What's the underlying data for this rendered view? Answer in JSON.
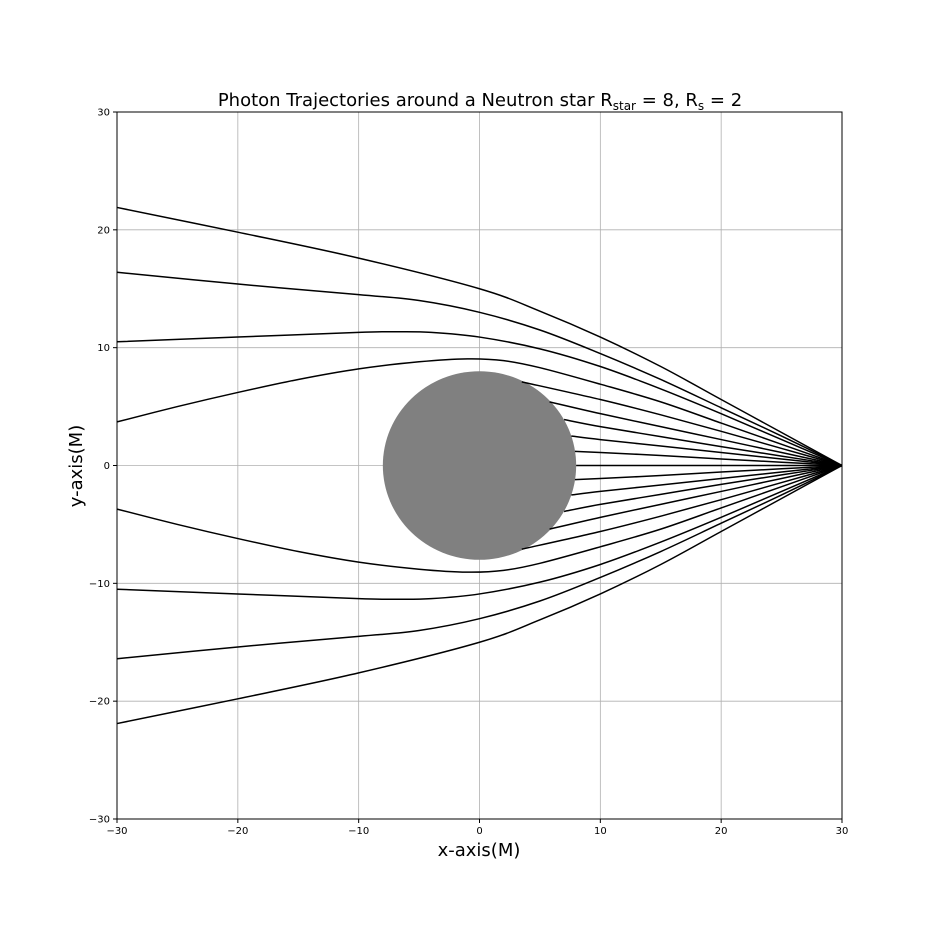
{
  "chart_data": {
    "type": "line",
    "title": {
      "prefix": "Photon Trajectories around a Neutron star ",
      "star_symbol": "R",
      "star_subscript": "star",
      "star_value": " = 8, ",
      "rs_symbol": "R",
      "rs_subscript": "s",
      "rs_value": " = 2"
    },
    "xlabel": "x-axis(M)",
    "ylabel": "y-axis(M)",
    "xlim": [
      -30,
      30
    ],
    "ylim": [
      -30,
      30
    ],
    "xticks": [
      "−30",
      "−20",
      "−10",
      "0",
      "10",
      "20",
      "30"
    ],
    "yticks": [
      "−30",
      "−20",
      "−10",
      "0",
      "10",
      "20",
      "30"
    ],
    "grid": true,
    "star": {
      "center": [
        0,
        0
      ],
      "radius": 8,
      "color": "#808080"
    },
    "observer": [
      30,
      0
    ],
    "line_color": "#000000",
    "series": [
      {
        "values": [
          [
            -30,
            21.9
          ],
          [
            -20,
            19.8
          ],
          [
            -10,
            17.6
          ],
          [
            0,
            15.0
          ],
          [
            5,
            13.1
          ],
          [
            10,
            10.9
          ],
          [
            15,
            8.4
          ],
          [
            20,
            5.6
          ],
          [
            25,
            2.8
          ],
          [
            30,
            0
          ]
        ]
      },
      {
        "values": [
          [
            -30,
            16.4
          ],
          [
            -20,
            15.4
          ],
          [
            -10,
            14.5
          ],
          [
            -5,
            14.0
          ],
          [
            0,
            13.0
          ],
          [
            5,
            11.5
          ],
          [
            10,
            9.5
          ],
          [
            15,
            7.3
          ],
          [
            20,
            4.9
          ],
          [
            25,
            2.5
          ],
          [
            30,
            0
          ]
        ]
      },
      {
        "values": [
          [
            -30,
            10.5
          ],
          [
            -20,
            10.9
          ],
          [
            -10,
            11.3
          ],
          [
            -7,
            11.35
          ],
          [
            -4,
            11.3
          ],
          [
            0,
            10.9
          ],
          [
            5,
            9.9
          ],
          [
            10,
            8.4
          ],
          [
            15,
            6.5
          ],
          [
            20,
            4.4
          ],
          [
            25,
            2.2
          ],
          [
            30,
            0
          ]
        ]
      },
      {
        "values": [
          [
            -30,
            3.7
          ],
          [
            -25,
            5.0
          ],
          [
            -20,
            6.2
          ],
          [
            -15,
            7.3
          ],
          [
            -10,
            8.2
          ],
          [
            -5,
            8.8
          ],
          [
            -1,
            9.05
          ],
          [
            2,
            8.9
          ],
          [
            5,
            8.3
          ],
          [
            10,
            6.9
          ],
          [
            15,
            5.4
          ],
          [
            20,
            3.6
          ],
          [
            25,
            1.8
          ],
          [
            30,
            0
          ]
        ]
      },
      {
        "values": [
          [
            3.5,
            7.1
          ],
          [
            10,
            5.6
          ],
          [
            15,
            4.3
          ],
          [
            20,
            2.9
          ],
          [
            25,
            1.45
          ],
          [
            30,
            0
          ]
        ]
      },
      {
        "values": [
          [
            5.8,
            5.4
          ],
          [
            10,
            4.4
          ],
          [
            15,
            3.3
          ],
          [
            20,
            2.2
          ],
          [
            25,
            1.1
          ],
          [
            30,
            0
          ]
        ]
      },
      {
        "values": [
          [
            7.0,
            3.9
          ],
          [
            10,
            3.3
          ],
          [
            15,
            2.45
          ],
          [
            20,
            1.6
          ],
          [
            25,
            0.8
          ],
          [
            30,
            0
          ]
        ]
      },
      {
        "values": [
          [
            7.6,
            2.5
          ],
          [
            10,
            2.2
          ],
          [
            15,
            1.65
          ],
          [
            20,
            1.1
          ],
          [
            25,
            0.55
          ],
          [
            30,
            0
          ]
        ]
      },
      {
        "values": [
          [
            7.9,
            1.2
          ],
          [
            10,
            1.1
          ],
          [
            15,
            0.85
          ],
          [
            20,
            0.55
          ],
          [
            25,
            0.28
          ],
          [
            30,
            0
          ]
        ]
      },
      {
        "values": [
          [
            8.0,
            0
          ],
          [
            30,
            0
          ]
        ]
      },
      {
        "values": [
          [
            7.9,
            -1.2
          ],
          [
            10,
            -1.1
          ],
          [
            15,
            -0.85
          ],
          [
            20,
            -0.55
          ],
          [
            25,
            -0.28
          ],
          [
            30,
            0
          ]
        ]
      },
      {
        "values": [
          [
            7.6,
            -2.5
          ],
          [
            10,
            -2.2
          ],
          [
            15,
            -1.65
          ],
          [
            20,
            -1.1
          ],
          [
            25,
            -0.55
          ],
          [
            30,
            0
          ]
        ]
      },
      {
        "values": [
          [
            7.0,
            -3.9
          ],
          [
            10,
            -3.3
          ],
          [
            15,
            -2.45
          ],
          [
            20,
            -1.6
          ],
          [
            25,
            -0.8
          ],
          [
            30,
            0
          ]
        ]
      },
      {
        "values": [
          [
            5.8,
            -5.4
          ],
          [
            10,
            -4.4
          ],
          [
            15,
            -3.3
          ],
          [
            20,
            -2.2
          ],
          [
            25,
            -1.1
          ],
          [
            30,
            0
          ]
        ]
      },
      {
        "values": [
          [
            3.5,
            -7.1
          ],
          [
            10,
            -5.6
          ],
          [
            15,
            -4.3
          ],
          [
            20,
            -2.9
          ],
          [
            25,
            -1.45
          ],
          [
            30,
            0
          ]
        ]
      },
      {
        "values": [
          [
            -30,
            -3.7
          ],
          [
            -25,
            -5.0
          ],
          [
            -20,
            -6.2
          ],
          [
            -15,
            -7.3
          ],
          [
            -10,
            -8.2
          ],
          [
            -5,
            -8.8
          ],
          [
            -1,
            -9.05
          ],
          [
            2,
            -8.9
          ],
          [
            5,
            -8.3
          ],
          [
            10,
            -6.9
          ],
          [
            15,
            -5.4
          ],
          [
            20,
            -3.6
          ],
          [
            25,
            -1.8
          ],
          [
            30,
            0
          ]
        ]
      },
      {
        "values": [
          [
            -30,
            -10.5
          ],
          [
            -20,
            -10.9
          ],
          [
            -10,
            -11.3
          ],
          [
            -7,
            -11.35
          ],
          [
            -4,
            -11.3
          ],
          [
            0,
            -10.9
          ],
          [
            5,
            -9.9
          ],
          [
            10,
            -8.4
          ],
          [
            15,
            -6.5
          ],
          [
            20,
            -4.4
          ],
          [
            25,
            -2.2
          ],
          [
            30,
            0
          ]
        ]
      },
      {
        "values": [
          [
            -30,
            -16.4
          ],
          [
            -20,
            -15.4
          ],
          [
            -10,
            -14.5
          ],
          [
            -5,
            -14.0
          ],
          [
            0,
            -13.0
          ],
          [
            5,
            -11.5
          ],
          [
            10,
            -9.5
          ],
          [
            15,
            -7.3
          ],
          [
            20,
            -4.9
          ],
          [
            25,
            -2.5
          ],
          [
            30,
            0
          ]
        ]
      },
      {
        "values": [
          [
            -30,
            -21.9
          ],
          [
            -20,
            -19.8
          ],
          [
            -10,
            -17.6
          ],
          [
            0,
            -15.0
          ],
          [
            5,
            -13.1
          ],
          [
            10,
            -10.9
          ],
          [
            15,
            -8.4
          ],
          [
            20,
            -5.6
          ],
          [
            25,
            -2.8
          ],
          [
            30,
            0
          ]
        ]
      }
    ]
  }
}
